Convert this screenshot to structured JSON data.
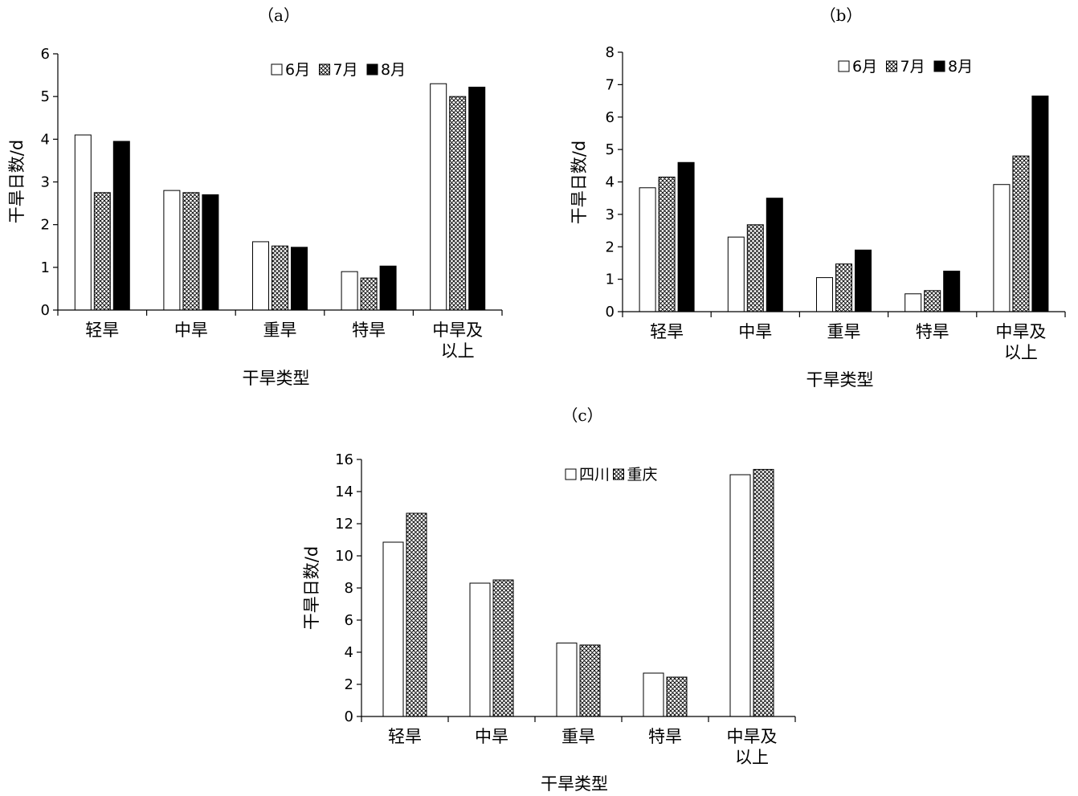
{
  "chart_data": [
    {
      "type": "bar",
      "panel_label": "（a）",
      "categories": [
        "轻旱",
        "中旱",
        "重旱",
        "特旱",
        "中旱及\n以上"
      ],
      "series": [
        {
          "name": "6月",
          "values": [
            4.1,
            2.8,
            1.6,
            0.9,
            5.3
          ],
          "fill": "white"
        },
        {
          "name": "7月",
          "values": [
            2.75,
            2.75,
            1.5,
            0.75,
            5.0
          ],
          "fill": "crosshatch"
        },
        {
          "name": "8月",
          "values": [
            3.95,
            2.7,
            1.47,
            1.03,
            5.22
          ],
          "fill": "black"
        }
      ],
      "xlabel": "干旱类型",
      "ylabel": "干旱日数/d",
      "ylim": [
        0,
        6
      ],
      "yticks": [
        "0",
        "1",
        "2",
        "3",
        "4",
        "5",
        "6"
      ],
      "legend_position": "top-right",
      "grid": false
    },
    {
      "type": "bar",
      "panel_label": "（b）",
      "categories": [
        "轻旱",
        "中旱",
        "重旱",
        "特旱",
        "中旱及\n以上"
      ],
      "series": [
        {
          "name": "6月",
          "values": [
            3.82,
            2.3,
            1.05,
            0.55,
            3.92
          ],
          "fill": "white"
        },
        {
          "name": "7月",
          "values": [
            4.15,
            2.68,
            1.47,
            0.65,
            4.8
          ],
          "fill": "crosshatch"
        },
        {
          "name": "8月",
          "values": [
            4.6,
            3.5,
            1.9,
            1.25,
            6.65
          ],
          "fill": "black"
        }
      ],
      "xlabel": "干旱类型",
      "ylabel": "干旱日数/d",
      "ylim": [
        0,
        8
      ],
      "yticks": [
        "0",
        "1",
        "2",
        "3",
        "4",
        "5",
        "6",
        "7",
        "8"
      ],
      "legend_position": "top-right",
      "grid": false
    },
    {
      "type": "bar",
      "panel_label": "（c）",
      "categories": [
        "轻旱",
        "中旱",
        "重旱",
        "特旱",
        "中旱及\n以上"
      ],
      "series": [
        {
          "name": "四川",
          "values": [
            10.85,
            8.3,
            4.57,
            2.7,
            15.05
          ],
          "fill": "white"
        },
        {
          "name": "重庆",
          "values": [
            12.65,
            8.5,
            4.45,
            2.45,
            15.38
          ],
          "fill": "crosshatch"
        }
      ],
      "xlabel": "干旱类型",
      "ylabel": "干旱日数/d",
      "ylim": [
        0,
        16
      ],
      "yticks": [
        "0",
        "2",
        "4",
        "6",
        "8",
        "10",
        "12",
        "14",
        "16"
      ],
      "legend_position": "top-right",
      "grid": false
    }
  ]
}
